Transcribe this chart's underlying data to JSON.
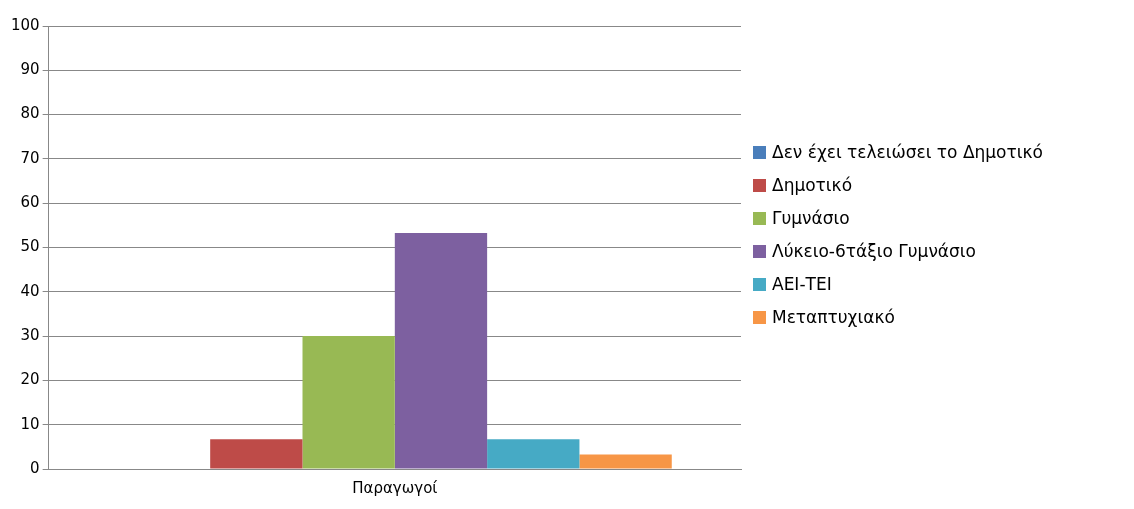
{
  "chart_data": {
    "type": "bar",
    "categories": [
      "Παραγωγοί"
    ],
    "series": [
      {
        "name": "Δεν έχει τελειώσει το Δημοτικό",
        "color": "#4a7ebb",
        "values": [
          0
        ]
      },
      {
        "name": "Δημοτικό",
        "color": "#be4b48",
        "values": [
          6.7
        ]
      },
      {
        "name": "Γυμνάσιο",
        "color": "#98b954",
        "values": [
          30
        ]
      },
      {
        "name": "Λύκειο-6τάξιο Γυμνάσιο",
        "color": "#7d60a0",
        "values": [
          53.3
        ]
      },
      {
        "name": "ΑΕΙ-ΤΕΙ",
        "color": "#46aac5",
        "values": [
          6.7
        ]
      },
      {
        "name": "Μεταπτυχιακό",
        "color": "#f79646",
        "values": [
          3.3
        ]
      }
    ],
    "ylim": [
      0,
      100
    ],
    "yticks": [
      0,
      10,
      20,
      30,
      40,
      50,
      60,
      70,
      80,
      90,
      100
    ],
    "grid": "y",
    "legend": "right"
  }
}
